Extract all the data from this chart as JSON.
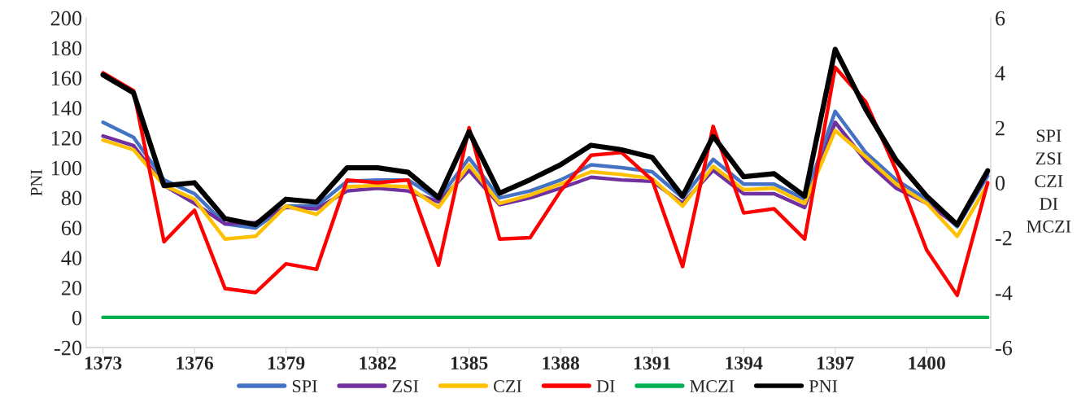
{
  "chart_data": {
    "type": "line",
    "ylabel": "PNI",
    "y2label": "SPI\nZSI\nCZI\nDI\nMCZI",
    "categories": [
      "1373",
      null,
      null,
      "1376",
      null,
      null,
      "1379",
      null,
      null,
      "1382",
      null,
      null,
      "1385",
      null,
      null,
      "1388",
      null,
      null,
      "1391",
      null,
      null,
      "1394",
      null,
      null,
      "1397",
      null,
      null,
      "1400",
      null,
      null
    ],
    "ylim": [
      -20,
      200
    ],
    "yticks": [
      -20,
      0,
      20,
      40,
      60,
      80,
      100,
      120,
      140,
      160,
      180,
      200
    ],
    "y2lim": [
      -6,
      6
    ],
    "y2ticks": [
      -6,
      -4,
      -2,
      0,
      2,
      4,
      6
    ],
    "series": [
      {
        "name": "SPI",
        "color": "#4472c4",
        "axis": "y2",
        "values": [
          2.2,
          1.65,
          0.1,
          -0.4,
          -1.5,
          -1.65,
          -0.85,
          -0.85,
          0.05,
          0.1,
          0.1,
          -0.6,
          0.9,
          -0.55,
          -0.3,
          0.1,
          0.65,
          0.55,
          0.4,
          -0.55,
          0.85,
          -0.05,
          -0.05,
          -0.6,
          2.6,
          1.1,
          0.1,
          -0.6,
          -1.6,
          0.25
        ]
      },
      {
        "name": "ZSI",
        "color": "#7030a0",
        "axis": "y2",
        "values": [
          1.7,
          1.35,
          -0.1,
          -0.75,
          -1.5,
          -1.45,
          -0.9,
          -0.95,
          -0.3,
          -0.2,
          -0.3,
          -0.7,
          0.45,
          -0.8,
          -0.55,
          -0.2,
          0.2,
          0.1,
          0.05,
          -0.75,
          0.45,
          -0.4,
          -0.4,
          -0.9,
          2.2,
          0.8,
          -0.2,
          -0.75,
          -1.55,
          0.35
        ]
      },
      {
        "name": "CZI",
        "color": "#ffc000",
        "axis": "y2",
        "values": [
          1.55,
          1.2,
          -0.1,
          -0.6,
          -2.05,
          -1.95,
          -0.85,
          -1.15,
          -0.15,
          -0.1,
          -0.15,
          -0.9,
          0.65,
          -0.75,
          -0.45,
          -0.05,
          0.4,
          0.3,
          0.15,
          -0.85,
          0.6,
          -0.25,
          -0.2,
          -0.75,
          1.9,
          0.95,
          -0.05,
          -0.75,
          -1.95,
          -0.05
        ]
      },
      {
        "name": "DI",
        "color": "#ff0000",
        "axis": "y2",
        "values": [
          4.0,
          3.35,
          -2.15,
          -1.0,
          -3.85,
          -4.0,
          -2.95,
          -3.15,
          0.1,
          0.0,
          0.1,
          -3.0,
          2.0,
          -2.05,
          -2.0,
          -0.3,
          1.0,
          1.1,
          0.1,
          -3.05,
          2.05,
          -1.1,
          -0.95,
          -2.05,
          4.2,
          2.95,
          0.45,
          -2.45,
          -4.1,
          0.0
        ]
      },
      {
        "name": "MCZI",
        "color": "#00b050",
        "axis": "y2",
        "values": [
          -4.9,
          -4.9,
          -4.9,
          -4.9,
          -4.9,
          -4.9,
          -4.9,
          -4.9,
          -4.9,
          -4.9,
          -4.9,
          -4.9,
          -4.9,
          -4.9,
          -4.9,
          -4.9,
          -4.9,
          -4.9,
          -4.9,
          -4.9,
          -4.9,
          -4.9,
          -4.9,
          -4.9,
          -4.9,
          -4.9,
          -4.9,
          -4.9,
          -4.9,
          -4.9
        ]
      },
      {
        "name": "PNI",
        "color": "#000000",
        "values": [
          162,
          150,
          88,
          90,
          66,
          62,
          79,
          77,
          100,
          100,
          97,
          80,
          124,
          83,
          92,
          102,
          115,
          112,
          107,
          81,
          121,
          94,
          96,
          81,
          179,
          139,
          105,
          81,
          62,
          98
        ]
      }
    ],
    "grid": false,
    "legend": "bottom",
    "marker": "none",
    "line_style": "solid"
  }
}
